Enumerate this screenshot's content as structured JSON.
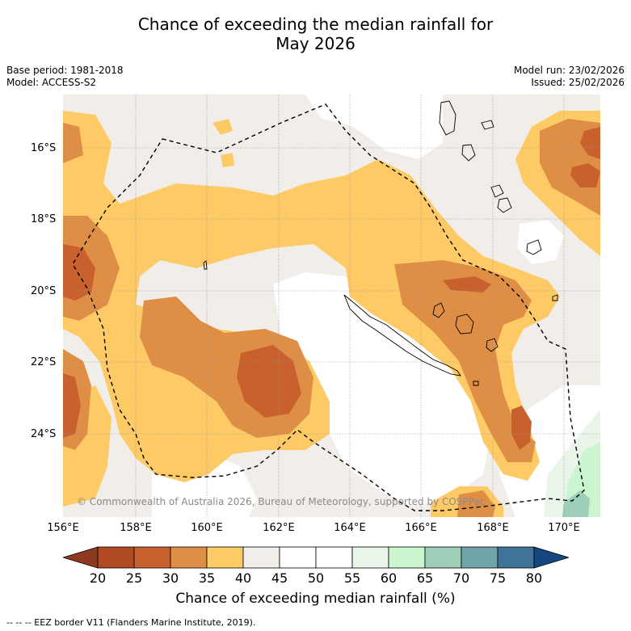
{
  "title": {
    "line1": "Chance of exceeding the median rainfall for",
    "line2": "May 2026"
  },
  "meta": {
    "base_period": "Base period: 1981-2018",
    "model": "Model: ACCESS-S2",
    "model_run": "Model run: 23/02/2026",
    "issued": "Issued: 25/02/2026"
  },
  "map": {
    "lat_labels": [
      "16°S",
      "18°S",
      "20°S",
      "22°S",
      "24°S"
    ],
    "lon_labels": [
      "156°E",
      "158°E",
      "160°E",
      "162°E",
      "164°E",
      "166°E",
      "168°E",
      "170°E"
    ],
    "copyright": "© Commonwealth of Australia 2026, Bureau of Meteorology, supported by COSPPac"
  },
  "colorbar": {
    "labels": [
      "20",
      "25",
      "30",
      "35",
      "40",
      "45",
      "50",
      "55",
      "60",
      "65",
      "70",
      "75",
      "80"
    ],
    "colors": [
      "#8e3a1e",
      "#b14a22",
      "#c8612e",
      "#de8f45",
      "#fdca66",
      "#f1ede8",
      "#ffffff",
      "#ffffff",
      "#e9f5e9",
      "#cbf5cf",
      "#9dcfb8",
      "#6fa4a8",
      "#3e7596",
      "#14487f"
    ],
    "title": "Chance of exceeding median rainfall (%)"
  },
  "legend": {
    "eez": "-- -- -- EEZ border V11 (Flanders Marine Institute, 2019)."
  }
}
